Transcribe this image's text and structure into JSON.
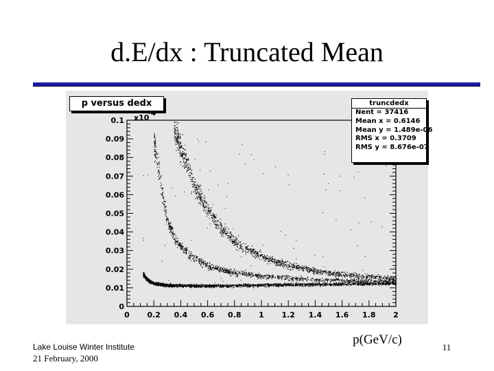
{
  "slide": {
    "title": "d.E/dx : Truncated Mean",
    "footer_event": "Lake Louise Winter Institute",
    "footer_date": "21 February, 2000",
    "page_number": "11"
  },
  "colors": {
    "title_rule": "#1a1aa8",
    "plot_background": "#e6e6e6",
    "marker": "#000000"
  },
  "chart_data": {
    "type": "scatter",
    "title": "p versus dedx",
    "xlabel": "p(GeV/c)",
    "ylabel": "",
    "y_multiplier": "x10",
    "y_multiplier_exponent": "-4",
    "xlim": [
      0,
      2
    ],
    "ylim": [
      0,
      0.1
    ],
    "x_ticks": [
      "0",
      "0.2",
      "0.4",
      "0.6",
      "0.8",
      "1",
      "1.2",
      "1.4",
      "1.6",
      "1.8",
      "2"
    ],
    "y_ticks": [
      "0",
      "0.01",
      "0.02",
      "0.03",
      "0.04",
      "0.05",
      "0.06",
      "0.07",
      "0.08",
      "0.09",
      "0.1"
    ],
    "grid": false,
    "stats_box": {
      "name": "truncdedx",
      "entries": [
        "Nent = 37416",
        "Mean x = 0.6146",
        "Mean y = 1.489e-06",
        "RMS x = 0.3709",
        "RMS y = 8.676e-07"
      ]
    },
    "bands": [
      {
        "description": "pion band",
        "points": [
          [
            0.12,
            0.0175
          ],
          [
            0.15,
            0.0145
          ],
          [
            0.2,
            0.0125
          ],
          [
            0.3,
            0.0115
          ],
          [
            0.5,
            0.0112
          ],
          [
            0.8,
            0.0113
          ],
          [
            1.2,
            0.0118
          ],
          [
            1.6,
            0.0122
          ],
          [
            2.0,
            0.0126
          ]
        ]
      },
      {
        "description": "kaon band",
        "points": [
          [
            0.2,
            0.09
          ],
          [
            0.25,
            0.065
          ],
          [
            0.3,
            0.046
          ],
          [
            0.35,
            0.037
          ],
          [
            0.4,
            0.032
          ],
          [
            0.5,
            0.026
          ],
          [
            0.6,
            0.022
          ],
          [
            0.8,
            0.018
          ],
          [
            1.0,
            0.0165
          ],
          [
            1.4,
            0.0145
          ],
          [
            2.0,
            0.0135
          ]
        ]
      },
      {
        "description": "proton band",
        "points": [
          [
            0.35,
            0.095
          ],
          [
            0.4,
            0.085
          ],
          [
            0.45,
            0.075
          ],
          [
            0.5,
            0.065
          ],
          [
            0.6,
            0.052
          ],
          [
            0.7,
            0.042
          ],
          [
            0.8,
            0.035
          ],
          [
            1.0,
            0.027
          ],
          [
            1.2,
            0.022
          ],
          [
            1.5,
            0.018
          ],
          [
            2.0,
            0.015
          ]
        ]
      }
    ]
  }
}
